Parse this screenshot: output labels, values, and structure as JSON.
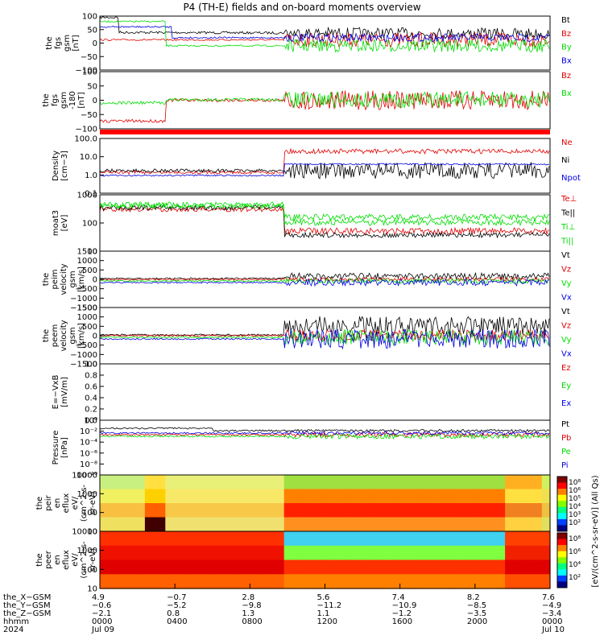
{
  "title": "P4 (TH-E) fields and on-board moments overview",
  "colors": {
    "black": "#000000",
    "red": "#e00000",
    "green": "#00dd00",
    "blue": "#0000e0",
    "bar_red": "#ff0000"
  },
  "chart_data": [
    {
      "type": "line",
      "ylabel": [
        "the",
        "fgs",
        "gsm",
        "[nT]"
      ],
      "yticks": [
        "100",
        "50",
        "0",
        "−50",
        "−100"
      ],
      "ylim": [
        -100,
        100
      ],
      "series": [
        {
          "name": "Bt",
          "color": "black"
        },
        {
          "name": "Bz",
          "color": "red"
        },
        {
          "name": "By",
          "color": "green"
        },
        {
          "name": "Bx",
          "color": "blue"
        }
      ]
    },
    {
      "type": "line",
      "ylabel": [
        "the",
        "fgs",
        "gsm",
        "-180",
        "[nT]"
      ],
      "yticks": [
        "100",
        "50",
        "0",
        "−50",
        "−100"
      ],
      "ylim": [
        -120,
        100
      ],
      "series": [
        {
          "name": "Bz",
          "color": "red"
        },
        {
          "name": "Bx",
          "color": "green"
        }
      ]
    },
    {
      "type": "line",
      "ylabel": [
        "Density",
        "[cm−3]"
      ],
      "yticks": [
        "100.0",
        "10.0",
        "1.0",
        "0.1"
      ],
      "scale": "log",
      "series": [
        {
          "name": "Ne",
          "color": "red"
        },
        {
          "name": "Ni",
          "color": "black"
        },
        {
          "name": "Npot",
          "color": "blue"
        }
      ]
    },
    {
      "type": "line",
      "ylabel": [
        "moat3",
        "[eV]"
      ],
      "yticks": [
        "1000",
        "100",
        "10"
      ],
      "scale": "log",
      "series": [
        {
          "name": "Te⊥",
          "color": "red"
        },
        {
          "name": "Te||",
          "color": "black"
        },
        {
          "name": "Ti⊥",
          "color": "green"
        },
        {
          "name": "Ti||",
          "color": "green"
        }
      ]
    },
    {
      "type": "line",
      "ylabel": [
        "the",
        "peim",
        "velocity",
        "gsm",
        "[km/s]"
      ],
      "yticks": [
        "1500",
        "1000",
        "500",
        "0",
        "−500",
        "−1000",
        "−1500"
      ],
      "ylim": [
        -1500,
        1500
      ],
      "series": [
        {
          "name": "Vt",
          "color": "black"
        },
        {
          "name": "Vz",
          "color": "red"
        },
        {
          "name": "Vy",
          "color": "green"
        },
        {
          "name": "Vx",
          "color": "blue"
        }
      ]
    },
    {
      "type": "line",
      "ylabel": [
        "the",
        "peem",
        "velocity",
        "gsm",
        "[km/s]"
      ],
      "yticks": [
        "1500",
        "1000",
        "500",
        "0",
        "−500",
        "−1000",
        "−1500"
      ],
      "ylim": [
        -1500,
        1500
      ],
      "series": [
        {
          "name": "Vt",
          "color": "black"
        },
        {
          "name": "Vz",
          "color": "red"
        },
        {
          "name": "Vy",
          "color": "green"
        },
        {
          "name": "Vx",
          "color": "blue"
        }
      ]
    },
    {
      "type": "line",
      "ylabel": [
        "E=−VxB",
        "[mV/m]"
      ],
      "yticks": [
        "1.0",
        "0.8",
        "0.6",
        "0.4",
        "0.2",
        "0.0"
      ],
      "ylim": [
        0,
        1
      ],
      "series": [
        {
          "name": "Ez",
          "color": "red"
        },
        {
          "name": "Ey",
          "color": "green"
        },
        {
          "name": "Ex",
          "color": "blue"
        }
      ]
    },
    {
      "type": "line",
      "ylabel": [
        "Pressure",
        "[nPa]"
      ],
      "yticks": [
        "10⁰",
        "10⁻²",
        "10⁻⁴",
        "10⁻⁶",
        "10⁻⁸",
        "10⁻¹⁰"
      ],
      "scale": "log",
      "series": [
        {
          "name": "Pt",
          "color": "black"
        },
        {
          "name": "Pb",
          "color": "red"
        },
        {
          "name": "Pe",
          "color": "green"
        },
        {
          "name": "Pi",
          "color": "blue"
        }
      ]
    },
    {
      "type": "heatmap",
      "ylabel": [
        "the",
        "peir",
        "en",
        "eflux",
        "eV/",
        "(cm^2-s-",
        "sr-eV)"
      ],
      "yticks": [
        "10000",
        "1000",
        "100",
        "10"
      ],
      "scale": "log"
    },
    {
      "type": "heatmap",
      "ylabel": [
        "the",
        "peer",
        "en",
        "eflux",
        "eV/",
        "(cm^2-s-",
        "sr-eV)"
      ],
      "yticks": [
        "10000",
        "1000",
        "100",
        "10"
      ],
      "scale": "log"
    }
  ],
  "colorbar": {
    "label": "[eV/(cm^2-s-sr-eV)] (All Qs)",
    "ticks_top": [
      "10⁸",
      "10⁶",
      "10⁵",
      "10⁴",
      "10³",
      "10²"
    ],
    "ticks_bottom": [
      "10⁸",
      "10⁶",
      "10⁴",
      "10²"
    ]
  },
  "xaxis": {
    "row_labels": [
      "the_X−GSM",
      "the_Y−GSM",
      "the_Z−GSM",
      "hhmm",
      "2024"
    ],
    "columns": [
      {
        "x": "4.9",
        "y": "−0.6",
        "z": "−2.1",
        "hhmm": "0000",
        "date": "Jul 09"
      },
      {
        "x": "−0.7",
        "y": "−5.2",
        "z": "0.8",
        "hhmm": "0400",
        "date": ""
      },
      {
        "x": "2.8",
        "y": "−9.8",
        "z": "1.3",
        "hhmm": "0800",
        "date": ""
      },
      {
        "x": "5.6",
        "y": "−11.2",
        "z": "1.1",
        "hhmm": "1200",
        "date": ""
      },
      {
        "x": "7.4",
        "y": "−10.9",
        "z": "−1.2",
        "hhmm": "1600",
        "date": ""
      },
      {
        "x": "8.2",
        "y": "−8.5",
        "z": "−3.5",
        "hhmm": "2000",
        "date": ""
      },
      {
        "x": "7.6",
        "y": "−4.9",
        "z": "−3.4",
        "hhmm": "0000",
        "date": "Jul 10"
      }
    ]
  }
}
